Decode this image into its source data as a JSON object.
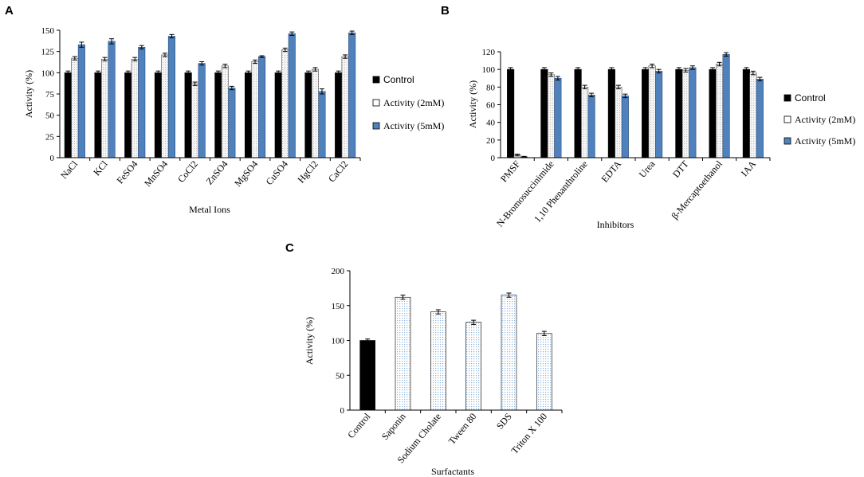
{
  "colors": {
    "control": "#000000",
    "mm2": "#ebebeb",
    "mm5": "#4f81bd",
    "surf_dotted": "#d6e6f5"
  },
  "chart_data": [
    {
      "panel": "A",
      "type": "bar",
      "title": "",
      "xlabel": "Metal Ions",
      "ylabel": "Activity  (%)",
      "ylim": [
        0,
        150
      ],
      "yticks": [
        0,
        25,
        50,
        75,
        100,
        125,
        150
      ],
      "categories": [
        "NaCl",
        "KCl",
        "FeSO4",
        "MnSO4",
        "CoCl2",
        "ZnSO4",
        "MgSO4",
        "CuSO4",
        "HgCl2",
        "CaCl2"
      ],
      "series": [
        {
          "name": "Control",
          "values": [
            100,
            100,
            100,
            100,
            100,
            100,
            100,
            100,
            100,
            100
          ],
          "errors": [
            2,
            2,
            2,
            2,
            2,
            2,
            2,
            2,
            2,
            2
          ]
        },
        {
          "name": "Activity  (2mM)",
          "values": [
            117,
            116,
            116,
            121,
            87,
            108,
            113,
            127,
            104,
            119
          ],
          "errors": [
            2,
            2,
            2,
            2,
            2,
            2,
            2,
            2,
            2,
            2
          ]
        },
        {
          "name": "Activity  (5mM)",
          "values": [
            133,
            137,
            130,
            143,
            111,
            82,
            119,
            146,
            78,
            147
          ],
          "errors": [
            3,
            3,
            2,
            2,
            2,
            2,
            1,
            2,
            3,
            2
          ]
        }
      ],
      "legend": [
        "Control",
        "Activity  (2mM)",
        "Activity  (5mM)"
      ],
      "legend_position": "right"
    },
    {
      "panel": "B",
      "type": "bar",
      "title": "",
      "xlabel": "Inhibitors",
      "ylabel": "Activity  (%)",
      "ylim": [
        0,
        120
      ],
      "yticks": [
        0,
        20,
        40,
        60,
        80,
        100,
        120
      ],
      "categories": [
        "PMSF",
        "N-Bromosuccinimide",
        "1,10 Phenanthroline",
        "EDTA",
        "Urea",
        "DTT",
        "β-Mercaptoethanol",
        "IAA"
      ],
      "series": [
        {
          "name": "Control",
          "values": [
            100,
            100,
            100,
            100,
            100,
            100,
            100,
            100
          ],
          "errors": [
            2,
            2,
            2,
            2,
            2,
            2,
            2,
            2
          ]
        },
        {
          "name": "Activity  (2mM)",
          "values": [
            3,
            94,
            80,
            80,
            104,
            99,
            106,
            96
          ],
          "errors": [
            1,
            2,
            2,
            2,
            2,
            2,
            2,
            2
          ]
        },
        {
          "name": "Activity  (5mM)",
          "values": [
            1,
            90,
            71,
            70,
            98,
            102,
            117,
            89
          ],
          "errors": [
            0.5,
            2,
            2,
            2,
            2,
            2,
            2,
            2
          ]
        }
      ],
      "legend": [
        "Control",
        "Activity  (2mM)",
        "Activity  (5mM)"
      ],
      "legend_position": "right"
    },
    {
      "panel": "C",
      "type": "bar",
      "title": "",
      "xlabel": "Surfactants",
      "ylabel": "Activity  (%)",
      "ylim": [
        0,
        200
      ],
      "yticks": [
        0,
        50,
        100,
        150,
        200
      ],
      "categories": [
        "Control",
        "Saponin",
        "Sodium Cholate",
        "Tween 80",
        "SDS",
        "Triton X 100"
      ],
      "values": [
        100,
        162,
        141,
        126,
        165,
        110
      ],
      "errors": [
        2,
        3,
        3,
        3,
        3,
        3
      ]
    }
  ]
}
